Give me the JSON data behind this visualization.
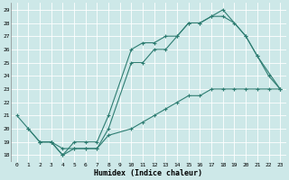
{
  "xlabel": "Humidex (Indice chaleur)",
  "bg_color": "#cde8e8",
  "grid_color": "#b0d0d0",
  "line_color": "#2e7d72",
  "xlim": [
    -0.5,
    23.5
  ],
  "ylim": [
    17.5,
    29.5
  ],
  "xticks": [
    0,
    1,
    2,
    3,
    4,
    5,
    6,
    7,
    8,
    9,
    10,
    11,
    12,
    13,
    14,
    15,
    16,
    17,
    18,
    19,
    20,
    21,
    22,
    23
  ],
  "yticks": [
    18,
    19,
    20,
    21,
    22,
    23,
    24,
    25,
    26,
    27,
    28,
    29
  ],
  "curve1_x": [
    0,
    1,
    2,
    3,
    4,
    5,
    6,
    7,
    8,
    10,
    11,
    12,
    13,
    14,
    15,
    16,
    17,
    18,
    20,
    21,
    23
  ],
  "curve1_y": [
    21,
    20,
    19,
    19,
    18,
    19,
    19,
    19,
    21,
    26,
    26.5,
    26.5,
    27,
    27,
    28,
    28,
    28.5,
    29,
    27,
    25.5,
    23
  ],
  "curve2_x": [
    1,
    2,
    3,
    4,
    5,
    6,
    7,
    8,
    10,
    11,
    12,
    13,
    14,
    15,
    16,
    17,
    18,
    19,
    20,
    21,
    22,
    23
  ],
  "curve2_y": [
    20,
    19,
    19,
    18,
    18.5,
    18.5,
    18.5,
    20,
    25,
    25,
    26,
    26,
    27,
    28,
    28,
    28.5,
    28.5,
    28,
    27,
    25.5,
    24,
    23
  ],
  "curve3_x": [
    2,
    3,
    4,
    5,
    6,
    7,
    8,
    10,
    11,
    12,
    13,
    14,
    15,
    16,
    17,
    18,
    19,
    20,
    21,
    22,
    23
  ],
  "curve3_y": [
    19,
    19,
    18.5,
    18.5,
    18.5,
    18.5,
    19.5,
    20,
    20.5,
    21,
    21.5,
    22,
    22.5,
    22.5,
    23,
    23,
    23,
    23,
    23,
    23,
    23
  ]
}
